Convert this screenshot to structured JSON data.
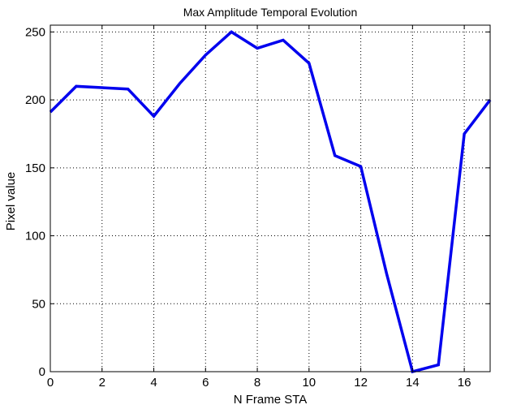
{
  "chart_data": {
    "type": "line",
    "title": "Max Amplitude Temporal Evolution",
    "xlabel": "N Frame STA",
    "ylabel": "Pixel value",
    "xlim": [
      0,
      17
    ],
    "ylim": [
      0,
      255
    ],
    "xticks": [
      0,
      2,
      4,
      6,
      8,
      10,
      12,
      14,
      16
    ],
    "yticks": [
      0,
      50,
      100,
      150,
      200,
      250
    ],
    "grid": true,
    "grid_style": "dotted",
    "series": [
      {
        "color": "#0000ee",
        "x": [
          0,
          1,
          2,
          3,
          4,
          5,
          6,
          7,
          8,
          9,
          10,
          11,
          12,
          13,
          14,
          15,
          16,
          17
        ],
        "y": [
          191,
          210,
          209,
          208,
          188,
          212,
          233,
          250,
          238,
          244,
          227,
          159,
          151,
          72,
          0,
          5,
          175,
          200
        ]
      }
    ]
  }
}
